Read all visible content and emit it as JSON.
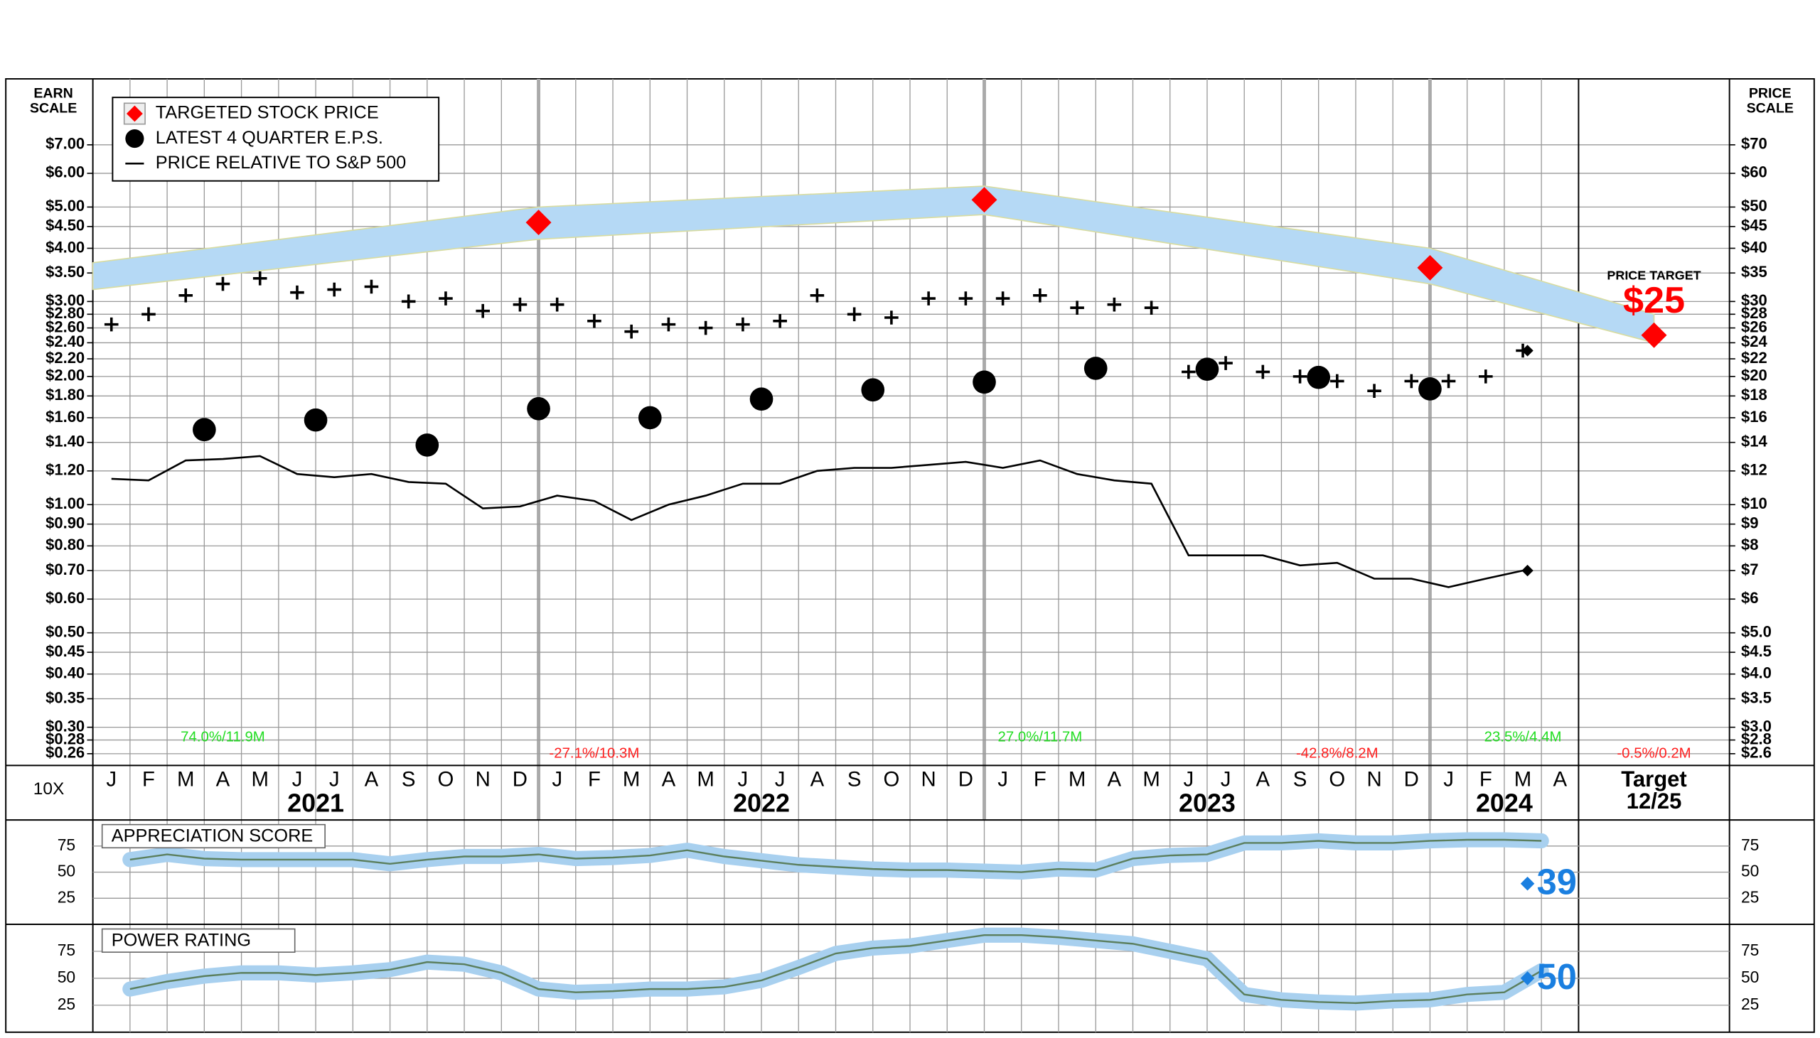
{
  "chart_data": [
    {
      "type": "stock",
      "left_axis_title": [
        "EARN",
        "SCALE"
      ],
      "right_axis_title": [
        "PRICE",
        "SCALE"
      ],
      "ratio_label": "10X",
      "categories": [
        "J",
        "F",
        "M",
        "A",
        "M",
        "J",
        "J",
        "A",
        "S",
        "O",
        "N",
        "D",
        "J",
        "F",
        "M",
        "A",
        "M",
        "J",
        "J",
        "A",
        "S",
        "O",
        "N",
        "D",
        "J",
        "F",
        "M",
        "A",
        "M",
        "J",
        "J",
        "A",
        "S",
        "O",
        "N",
        "D",
        "J",
        "F",
        "M",
        "A"
      ],
      "years": [
        "2021",
        "2022",
        "2023",
        "2024"
      ],
      "target_label": "Target",
      "target_date": "12/25",
      "target_caption": "PRICE TARGET",
      "ylim": [
        0.244,
        10.0
      ],
      "y2lim": [
        2.44,
        100
      ],
      "log_scale": true,
      "grid": true,
      "yticks": [
        {
          "value": 7,
          "label": "$7.00"
        },
        {
          "value": 6,
          "label": "$6.00"
        },
        {
          "value": 5,
          "label": "$5.00"
        },
        {
          "value": 4.5,
          "label": "$4.50"
        },
        {
          "value": 4,
          "label": "$4.00"
        },
        {
          "value": 3.5,
          "label": "$3.50"
        },
        {
          "value": 3,
          "label": "$3.00"
        },
        {
          "value": 2.8,
          "label": "$2.80"
        },
        {
          "value": 2.6,
          "label": "$2.60"
        },
        {
          "value": 2.4,
          "label": "$2.40"
        },
        {
          "value": 2.2,
          "label": "$2.20"
        },
        {
          "value": 2,
          "label": "$2.00"
        },
        {
          "value": 1.8,
          "label": "$1.80"
        },
        {
          "value": 1.6,
          "label": "$1.60"
        },
        {
          "value": 1.4,
          "label": "$1.40"
        },
        {
          "value": 1.2,
          "label": "$1.20"
        },
        {
          "value": 1,
          "label": "$1.00"
        },
        {
          "value": 0.9,
          "label": "$0.90"
        },
        {
          "value": 0.8,
          "label": "$0.80"
        },
        {
          "value": 0.7,
          "label": "$0.70"
        },
        {
          "value": 0.6,
          "label": "$0.60"
        },
        {
          "value": 0.5,
          "label": "$0.50"
        },
        {
          "value": 0.45,
          "label": "$0.45"
        },
        {
          "value": 0.4,
          "label": "$0.40"
        },
        {
          "value": 0.35,
          "label": "$0.35"
        },
        {
          "value": 0.3,
          "label": "$0.30"
        },
        {
          "value": 0.28,
          "label": "$0.28"
        },
        {
          "value": 0.26,
          "label": "$0.26"
        }
      ],
      "y2ticks": [
        {
          "value": 70,
          "label": "$70"
        },
        {
          "value": 60,
          "label": "$60"
        },
        {
          "value": 50,
          "label": "$50"
        },
        {
          "value": 45,
          "label": "$45"
        },
        {
          "value": 40,
          "label": "$40"
        },
        {
          "value": 35,
          "label": "$35"
        },
        {
          "value": 30,
          "label": "$30"
        },
        {
          "value": 28,
          "label": "$28"
        },
        {
          "value": 26,
          "label": "$26"
        },
        {
          "value": 24,
          "label": "$24"
        },
        {
          "value": 22,
          "label": "$22"
        },
        {
          "value": 20,
          "label": "$20"
        },
        {
          "value": 18,
          "label": "$18"
        },
        {
          "value": 16,
          "label": "$16"
        },
        {
          "value": 14,
          "label": "$14"
        },
        {
          "value": 12,
          "label": "$12"
        },
        {
          "value": 10,
          "label": "$10"
        },
        {
          "value": 9,
          "label": "$9"
        },
        {
          "value": 8,
          "label": "$8"
        },
        {
          "value": 7,
          "label": "$7"
        },
        {
          "value": 6,
          "label": "$6"
        },
        {
          "value": 5,
          "label": "$5.0"
        },
        {
          "value": 4.5,
          "label": "$4.5"
        },
        {
          "value": 4,
          "label": "$4.0"
        },
        {
          "value": 3.5,
          "label": "$3.5"
        },
        {
          "value": 3,
          "label": "$3.0"
        },
        {
          "value": 2.8,
          "label": "$2.8"
        },
        {
          "value": 2.6,
          "label": "$2.6"
        }
      ],
      "band": {
        "color": "#b5d9f5",
        "x": [
          "2020-12",
          "2021-12",
          "2022-12",
          "2023-12",
          "2025-12"
        ],
        "low": [
          32,
          42,
          48,
          33,
          24
        ],
        "high": [
          37,
          50,
          56,
          40,
          28
        ]
      },
      "price_bars": {
        "color": "#000000",
        "axis": "y2",
        "x": [
          "2021-01",
          "2021-02",
          "2021-03",
          "2021-04",
          "2021-05",
          "2021-06",
          "2021-07",
          "2021-08",
          "2021-09",
          "2021-10",
          "2021-11",
          "2021-12",
          "2022-01",
          "2022-02",
          "2022-03",
          "2022-04",
          "2022-05",
          "2022-06",
          "2022-07",
          "2022-08",
          "2022-09",
          "2022-10",
          "2022-11",
          "2022-12",
          "2023-01",
          "2023-02",
          "2023-03",
          "2023-04",
          "2023-05",
          "2023-06",
          "2023-07",
          "2023-08",
          "2023-09",
          "2023-10",
          "2023-11",
          "2023-12",
          "2024-01",
          "2024-02",
          "2024-03"
        ],
        "values": [
          26.5,
          28,
          31,
          33,
          34,
          31.5,
          32,
          32.5,
          30,
          30.5,
          28.5,
          29.5,
          29.5,
          27,
          25.5,
          26.5,
          26,
          26.5,
          27,
          31,
          28,
          27.5,
          30.5,
          30.5,
          30.5,
          31,
          29,
          29.5,
          29,
          20.5,
          21.5,
          20.5,
          20,
          19.5,
          18.5,
          19.5,
          19.5,
          20,
          23
        ]
      },
      "series": [
        {
          "name": "TARGETED STOCK PRICE",
          "color": "#ff0000",
          "axis": "y2",
          "marker": "diamond",
          "x": [
            "2021-12",
            "2022-12",
            "2023-12",
            "2025-12"
          ],
          "values": [
            46,
            52,
            36,
            25
          ],
          "value_labels": [
            null,
            null,
            null,
            "$25"
          ]
        },
        {
          "name": "LATEST 4 QUARTER E.P.S.",
          "color": "#000000",
          "marker": "circle",
          "x": [
            "2021-03",
            "2021-06",
            "2021-09",
            "2021-12",
            "2022-03",
            "2022-06",
            "2022-09",
            "2022-12",
            "2023-03",
            "2023-06",
            "2023-09",
            "2023-12"
          ],
          "values": [
            1.5,
            1.58,
            1.38,
            1.68,
            1.6,
            1.77,
            1.86,
            1.94,
            2.09,
            2.08,
            1.99,
            1.87
          ]
        },
        {
          "name": "PRICE RELATIVE TO S&P 500",
          "color": "#000000",
          "marker": "line",
          "x": [
            "2021-01",
            "2021-02",
            "2021-03",
            "2021-04",
            "2021-05",
            "2021-06",
            "2021-07",
            "2021-08",
            "2021-09",
            "2021-10",
            "2021-11",
            "2021-12",
            "2022-01",
            "2022-02",
            "2022-03",
            "2022-04",
            "2022-05",
            "2022-06",
            "2022-07",
            "2022-08",
            "2022-09",
            "2022-10",
            "2022-11",
            "2022-12",
            "2023-01",
            "2023-02",
            "2023-03",
            "2023-04",
            "2023-05",
            "2023-06",
            "2023-07",
            "2023-08",
            "2023-09",
            "2023-10",
            "2023-11",
            "2023-12",
            "2024-01",
            "2024-02",
            "2024-03"
          ],
          "values": [
            1.15,
            1.14,
            1.27,
            1.28,
            1.3,
            1.18,
            1.16,
            1.18,
            1.13,
            1.12,
            0.98,
            0.99,
            1.05,
            1.02,
            0.92,
            1.0,
            1.05,
            1.12,
            1.12,
            1.2,
            1.22,
            1.22,
            1.24,
            1.26,
            1.22,
            1.27,
            1.18,
            1.14,
            1.12,
            0.76,
            0.76,
            0.76,
            0.72,
            0.73,
            0.67,
            0.67,
            0.64,
            0.67,
            0.7
          ]
        }
      ],
      "annotations": [
        {
          "text": "74.0%/11.9M",
          "color": "#22dd22",
          "x": "2021-04"
        },
        {
          "text": "-27.1%/10.3M",
          "color": "#ff2020",
          "x": "2022-02"
        },
        {
          "text": "27.0%/11.7M",
          "color": "#22dd22",
          "x": "2023-02"
        },
        {
          "text": "-42.8%/8.2M",
          "color": "#ff2020",
          "x": "2023-10"
        },
        {
          "text": "23.5%/4.4M",
          "color": "#22dd22",
          "x": "2024-03"
        },
        {
          "text": "-0.5%/0.2M",
          "color": "#ff2020",
          "x": "2025-12"
        }
      ]
    },
    {
      "type": "line",
      "title": "APPRECIATION SCORE",
      "color": "#a8d0ef",
      "ylim": [
        0,
        100
      ],
      "yticks": [
        25,
        50,
        75
      ],
      "current": 39,
      "current_color": "#1a7fe0",
      "x": [
        "2021-01",
        "2021-02",
        "2021-03",
        "2021-04",
        "2021-05",
        "2021-06",
        "2021-07",
        "2021-08",
        "2021-09",
        "2021-10",
        "2021-11",
        "2021-12",
        "2022-01",
        "2022-02",
        "2022-03",
        "2022-04",
        "2022-05",
        "2022-06",
        "2022-07",
        "2022-08",
        "2022-09",
        "2022-10",
        "2022-11",
        "2022-12",
        "2023-01",
        "2023-02",
        "2023-03",
        "2023-04",
        "2023-05",
        "2023-06",
        "2023-07",
        "2023-08",
        "2023-09",
        "2023-10",
        "2023-11",
        "2023-12",
        "2024-01",
        "2024-02",
        "2024-03"
      ],
      "values": [
        62,
        67,
        63,
        62,
        62,
        62,
        62,
        58,
        62,
        65,
        65,
        67,
        63,
        64,
        66,
        71,
        65,
        61,
        57,
        55,
        53,
        52,
        52,
        51,
        50,
        53,
        52,
        63,
        66,
        67,
        78,
        78,
        80,
        78,
        78,
        80,
        81,
        81,
        80
      ]
    },
    {
      "type": "line",
      "title": "POWER RATING",
      "color": "#a8d0ef",
      "ylim": [
        0,
        100
      ],
      "yticks": [
        25,
        50,
        75
      ],
      "current": 50,
      "current_color": "#1a7fe0",
      "x": [
        "2021-01",
        "2021-02",
        "2021-03",
        "2021-04",
        "2021-05",
        "2021-06",
        "2021-07",
        "2021-08",
        "2021-09",
        "2021-10",
        "2021-11",
        "2021-12",
        "2022-01",
        "2022-02",
        "2022-03",
        "2022-04",
        "2022-05",
        "2022-06",
        "2022-07",
        "2022-08",
        "2022-09",
        "2022-10",
        "2022-11",
        "2022-12",
        "2023-01",
        "2023-02",
        "2023-03",
        "2023-04",
        "2023-05",
        "2023-06",
        "2023-07",
        "2023-08",
        "2023-09",
        "2023-10",
        "2023-11",
        "2023-12",
        "2024-01",
        "2024-02",
        "2024-03"
      ],
      "values": [
        40,
        47,
        52,
        55,
        55,
        53,
        55,
        58,
        65,
        63,
        55,
        40,
        37,
        38,
        40,
        40,
        42,
        48,
        60,
        73,
        78,
        80,
        85,
        90,
        90,
        88,
        85,
        82,
        75,
        68,
        35,
        30,
        28,
        27,
        29,
        30,
        35,
        37,
        57
      ]
    }
  ]
}
